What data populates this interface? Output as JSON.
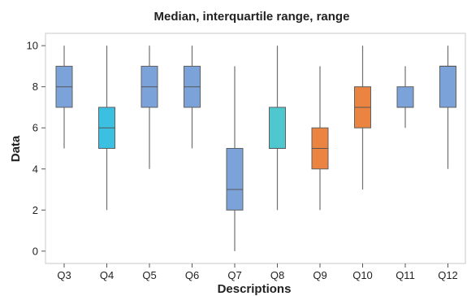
{
  "chart_data": {
    "type": "box",
    "title": "Median, interquartile range, range",
    "xlabel": "Descriptions",
    "ylabel": "Data",
    "ylim": [
      -0.6,
      10.6
    ],
    "yticks": [
      0,
      2,
      4,
      6,
      8,
      10
    ],
    "grid": false,
    "categories": [
      "Q3",
      "Q4",
      "Q5",
      "Q6",
      "Q7",
      "Q8",
      "Q9",
      "Q10",
      "Q11",
      "Q12"
    ],
    "boxes": [
      {
        "label": "Q3",
        "min": 5,
        "q1": 7,
        "median": 8,
        "q3": 9,
        "max": 10,
        "color": "#7ba3d9"
      },
      {
        "label": "Q4",
        "min": 2,
        "q1": 5,
        "median": 6,
        "q3": 7,
        "max": 10,
        "color": "#3cc0e2"
      },
      {
        "label": "Q5",
        "min": 4,
        "q1": 7,
        "median": 8,
        "q3": 9,
        "max": 10,
        "color": "#7ba3d9"
      },
      {
        "label": "Q6",
        "min": 5,
        "q1": 7,
        "median": 8,
        "q3": 9,
        "max": 10,
        "color": "#7ba3d9"
      },
      {
        "label": "Q7",
        "min": 0,
        "q1": 2,
        "median": 3,
        "q3": 5,
        "max": 9,
        "color": "#7ba3d9"
      },
      {
        "label": "Q8",
        "min": 2,
        "q1": 5,
        "median": 5,
        "q3": 7,
        "max": 10,
        "color": "#4fc7cf"
      },
      {
        "label": "Q9",
        "min": 2,
        "q1": 4,
        "median": 5,
        "q3": 6,
        "max": 9,
        "color": "#ea8440"
      },
      {
        "label": "Q10",
        "min": 3,
        "q1": 6,
        "median": 7,
        "q3": 8,
        "max": 10,
        "color": "#ea8440"
      },
      {
        "label": "Q11",
        "min": 6,
        "q1": 7,
        "median": 7,
        "q3": 8,
        "max": 9,
        "color": "#7ba3d9"
      },
      {
        "label": "Q12",
        "min": 4,
        "q1": 7,
        "median": 9,
        "q3": 9,
        "max": 10,
        "color": "#7ba3d9"
      }
    ]
  }
}
